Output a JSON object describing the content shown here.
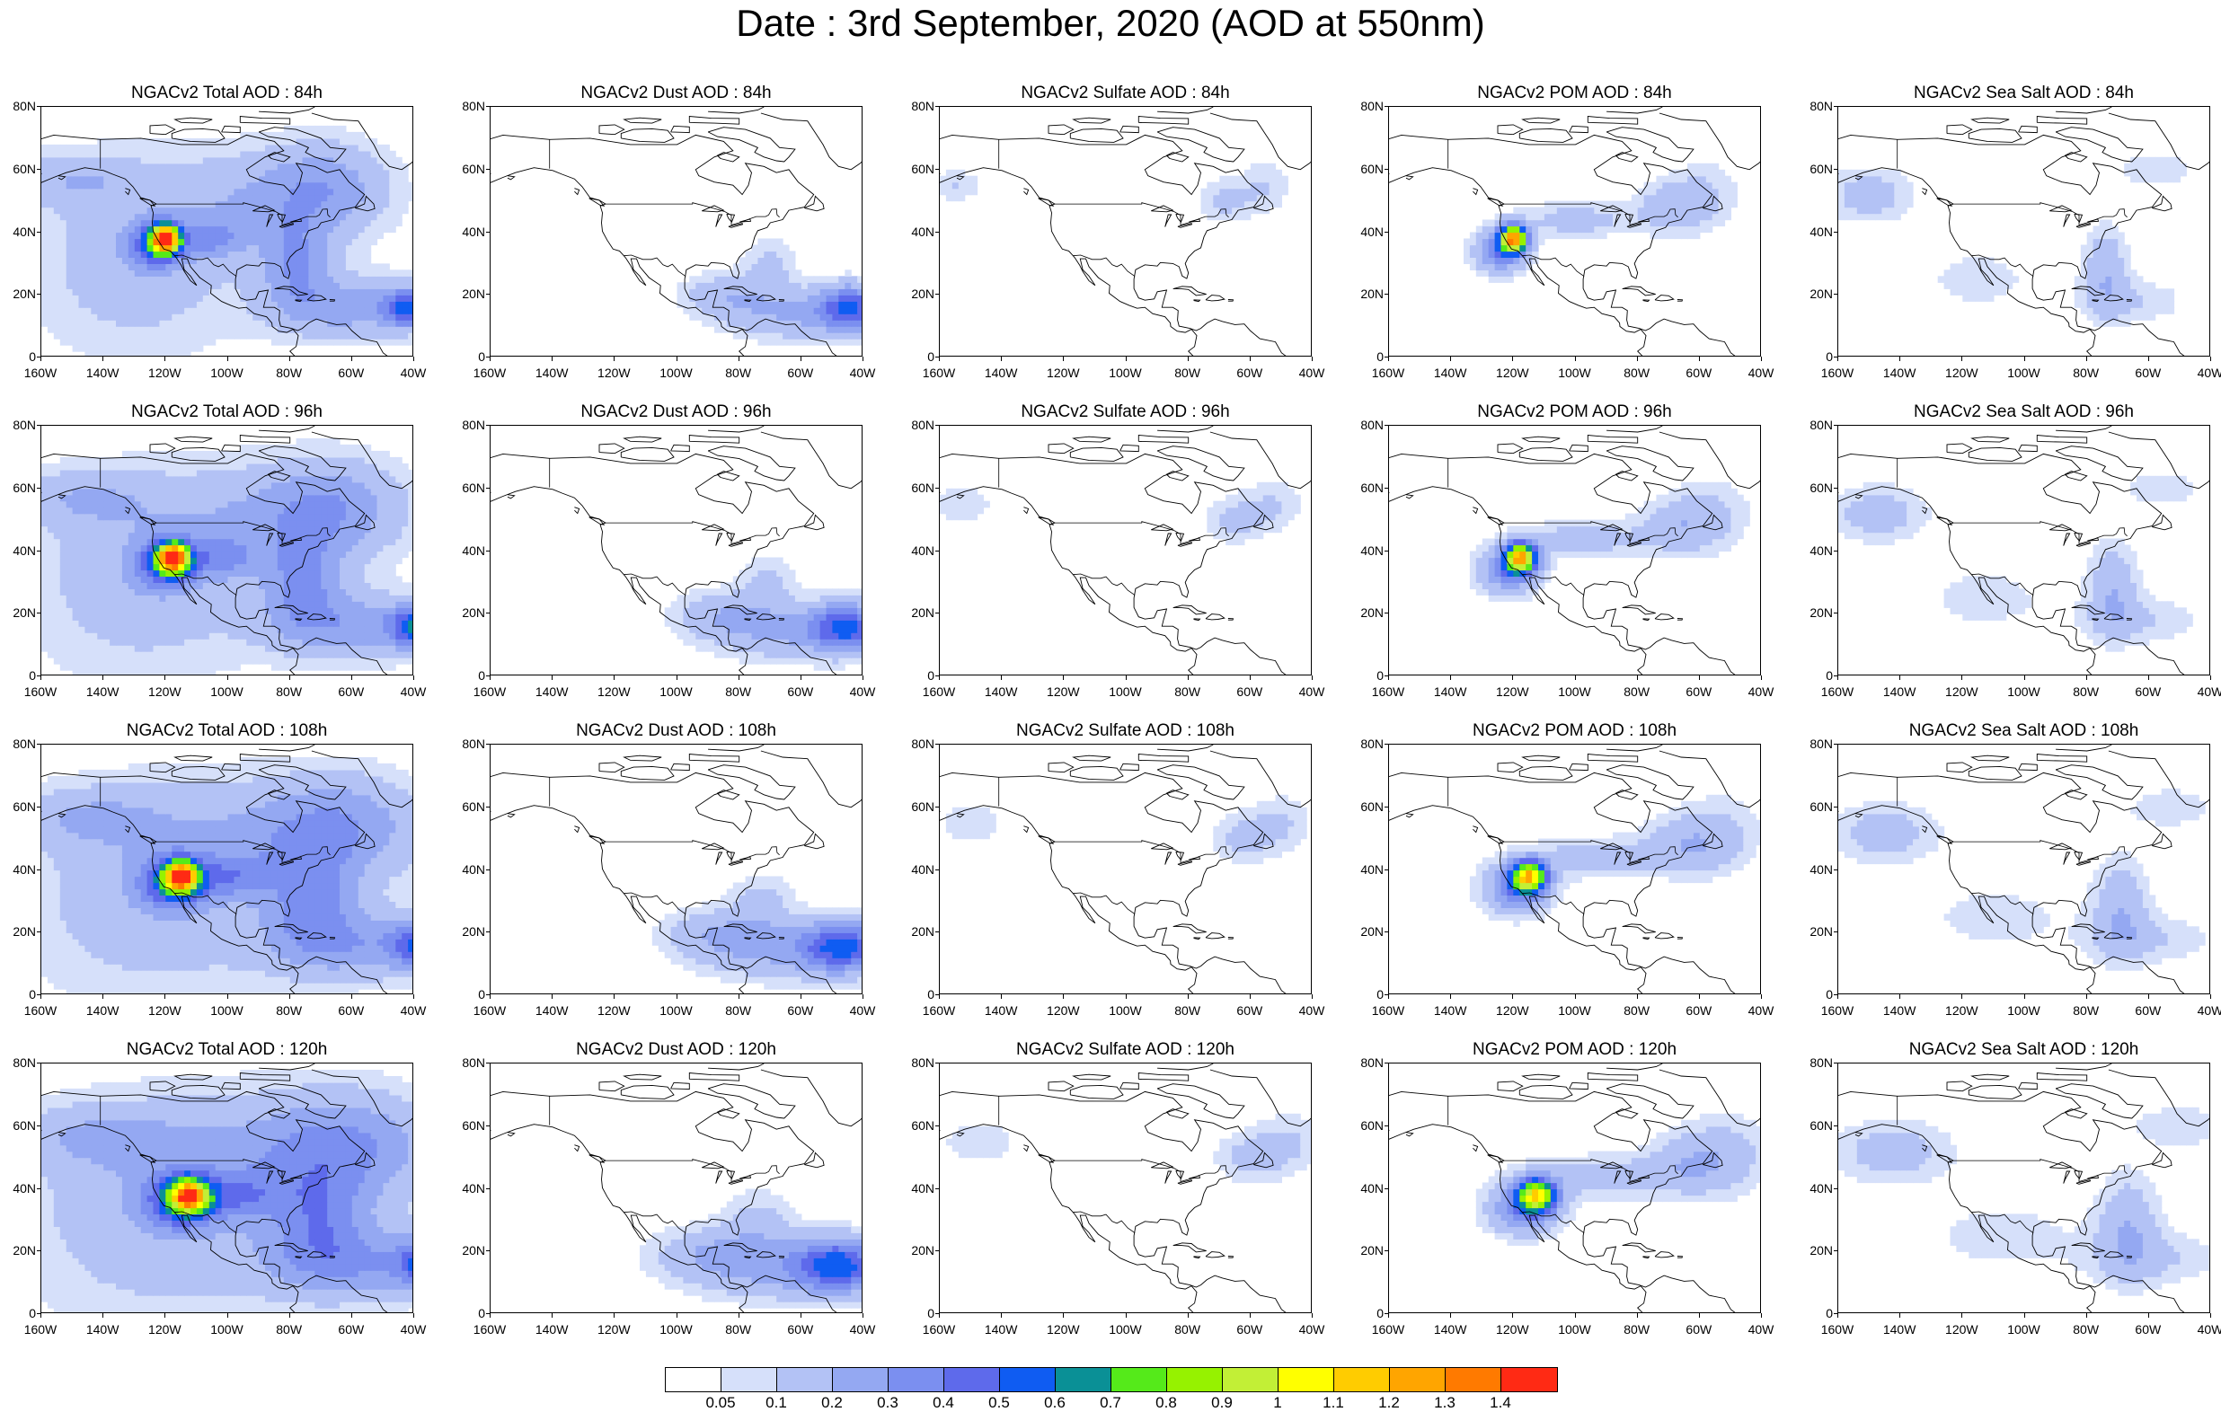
{
  "title": "Date : 3rd September, 2020 (AOD at 550nm)",
  "map": {
    "lat_range": [
      0,
      80
    ],
    "lon_range": [
      -160,
      -40
    ],
    "lat_ticks": [
      "0",
      "20N",
      "40N",
      "60N",
      "80N"
    ],
    "lon_ticks": [
      "160W",
      "140W",
      "120W",
      "100W",
      "80W",
      "60W",
      "40W"
    ]
  },
  "panels": [
    {
      "title": "NGACv2 Total AOD : 84h",
      "species": "total",
      "hour": 84
    },
    {
      "title": "NGACv2 Dust AOD : 84h",
      "species": "dust",
      "hour": 84
    },
    {
      "title": "NGACv2 Sulfate AOD : 84h",
      "species": "sulfate",
      "hour": 84
    },
    {
      "title": "NGACv2 POM AOD : 84h",
      "species": "pom",
      "hour": 84
    },
    {
      "title": "NGACv2 Sea Salt AOD : 84h",
      "species": "seasalt",
      "hour": 84
    },
    {
      "title": "NGACv2 Total AOD : 96h",
      "species": "total",
      "hour": 96
    },
    {
      "title": "NGACv2 Dust AOD : 96h",
      "species": "dust",
      "hour": 96
    },
    {
      "title": "NGACv2 Sulfate AOD : 96h",
      "species": "sulfate",
      "hour": 96
    },
    {
      "title": "NGACv2 POM AOD : 96h",
      "species": "pom",
      "hour": 96
    },
    {
      "title": "NGACv2 Sea Salt AOD : 96h",
      "species": "seasalt",
      "hour": 96
    },
    {
      "title": "NGACv2 Total AOD : 108h",
      "species": "total",
      "hour": 108
    },
    {
      "title": "NGACv2 Dust AOD : 108h",
      "species": "dust",
      "hour": 108
    },
    {
      "title": "NGACv2 Sulfate AOD : 108h",
      "species": "sulfate",
      "hour": 108
    },
    {
      "title": "NGACv2 POM AOD : 108h",
      "species": "pom",
      "hour": 108
    },
    {
      "title": "NGACv2 Sea Salt AOD : 108h",
      "species": "seasalt",
      "hour": 108
    },
    {
      "title": "NGACv2 Total AOD : 120h",
      "species": "total",
      "hour": 120
    },
    {
      "title": "NGACv2 Dust AOD : 120h",
      "species": "dust",
      "hour": 120
    },
    {
      "title": "NGACv2 Sulfate AOD : 120h",
      "species": "sulfate",
      "hour": 120
    },
    {
      "title": "NGACv2 POM AOD : 120h",
      "species": "pom",
      "hour": 120
    },
    {
      "title": "NGACv2 Sea Salt  AOD : 120h",
      "species": "seasalt",
      "hour": 120
    }
  ],
  "colorbar": {
    "colors": [
      "#ffffff",
      "#d6e0fa",
      "#b3c2f5",
      "#94a8f2",
      "#7b8ff0",
      "#5e6aeb",
      "#0f5cf2",
      "#0a9096",
      "#55ea1a",
      "#96f200",
      "#c2ef36",
      "#ffff00",
      "#ffcc00",
      "#ffa500",
      "#ff7a00",
      "#ff2a14"
    ],
    "labels": [
      "0.05",
      "0.1",
      "0.2",
      "0.3",
      "0.4",
      "0.5",
      "0.6",
      "0.7",
      "0.8",
      "0.9",
      "1",
      "1.1",
      "1.2",
      "1.3",
      "1.4"
    ]
  }
}
